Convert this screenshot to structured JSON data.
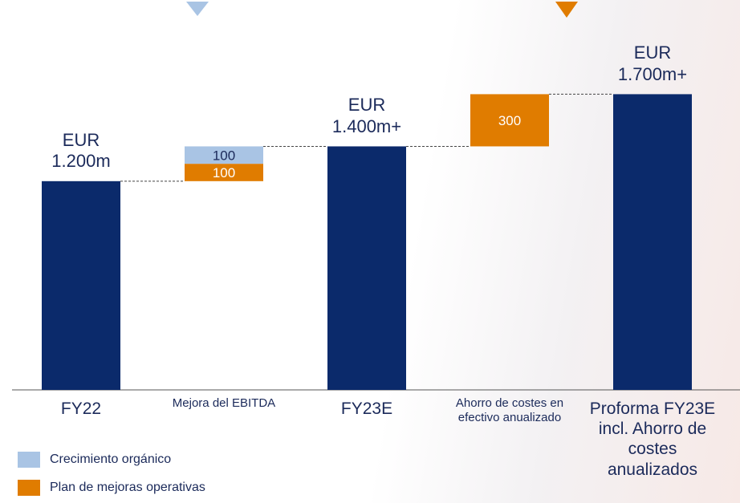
{
  "chart_data": {
    "type": "waterfall",
    "categories": [
      "FY22",
      "Mejora del EBITDA",
      "FY23E",
      "Ahorro de costes en efectivo anualizado",
      "Proforma FY23E incl. Ahorro de costes anualizados"
    ],
    "values": [
      1200,
      null,
      1400,
      null,
      1700
    ],
    "value_labels": [
      "EUR 1.200m",
      null,
      "EUR 1.400m+",
      null,
      "EUR 1.700m+"
    ],
    "color": "#0b2a6b",
    "series": [
      {
        "name": "Crecimiento orgánico",
        "color": "#a9c4e4",
        "values": [
          null,
          100,
          null,
          null,
          null
        ]
      },
      {
        "name": "Plan de mejoras operativas",
        "color": "#e07c00",
        "values": [
          null,
          100,
          null,
          300,
          null
        ]
      }
    ],
    "ylim": [
      0,
      2200
    ]
  }
}
